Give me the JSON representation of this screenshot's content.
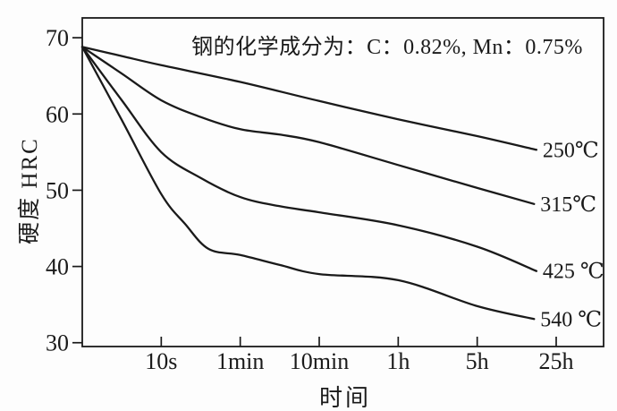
{
  "colors": {
    "ink": "#1a1a1a",
    "background": "#fdfdfd"
  },
  "chart_data": {
    "type": "line",
    "title": "钢的化学成分为：C：0.82%, Mn：0.75%",
    "xlabel": "时间",
    "ylabel": "硬度 HRC",
    "x_tick_labels": [
      "10s",
      "1min",
      "10min",
      "1h",
      "5h",
      "25h"
    ],
    "x_tick_units": [
      1,
      2,
      3,
      4,
      5,
      6
    ],
    "x_axis_style": "log-time ticks, equally spaced; curves start at left axis",
    "xlim_units": [
      0,
      6.6
    ],
    "y_ticks": [
      30,
      40,
      50,
      60,
      70
    ],
    "ylim": [
      29.5,
      72.6
    ],
    "grid": false,
    "legend_position": "curve-end-labels-right",
    "series": [
      {
        "name": "250℃",
        "points": [
          [
            0,
            68.8
          ],
          [
            0.5,
            67.6
          ],
          [
            1,
            66.4
          ],
          [
            2,
            64.2
          ],
          [
            3,
            61.7
          ],
          [
            4,
            59.3
          ],
          [
            5,
            57.1
          ],
          [
            5.75,
            55.3
          ]
        ]
      },
      {
        "name": "315℃",
        "points": [
          [
            0,
            68.8
          ],
          [
            0.5,
            65.3
          ],
          [
            1,
            61.8
          ],
          [
            1.5,
            59.6
          ],
          [
            2,
            58.0
          ],
          [
            2.5,
            57.3
          ],
          [
            3,
            56.3
          ],
          [
            4,
            53.3
          ],
          [
            5,
            50.3
          ],
          [
            5.72,
            48.2
          ]
        ]
      },
      {
        "name": "425 ℃",
        "points": [
          [
            0,
            68.8
          ],
          [
            0.5,
            61.8
          ],
          [
            1,
            55.0
          ],
          [
            1.5,
            51.6
          ],
          [
            2,
            49.1
          ],
          [
            2.5,
            47.9
          ],
          [
            3,
            47.1
          ],
          [
            4,
            45.4
          ],
          [
            5,
            42.6
          ],
          [
            5.75,
            39.4
          ]
        ]
      },
      {
        "name": "540 ℃",
        "points": [
          [
            0,
            68.8
          ],
          [
            0.5,
            59.2
          ],
          [
            1,
            49.5
          ],
          [
            1.3,
            45.6
          ],
          [
            1.6,
            42.3
          ],
          [
            2,
            41.5
          ],
          [
            2.5,
            40.2
          ],
          [
            3,
            39.0
          ],
          [
            4,
            38.2
          ],
          [
            5,
            34.8
          ],
          [
            5.72,
            33.1
          ]
        ]
      }
    ]
  }
}
